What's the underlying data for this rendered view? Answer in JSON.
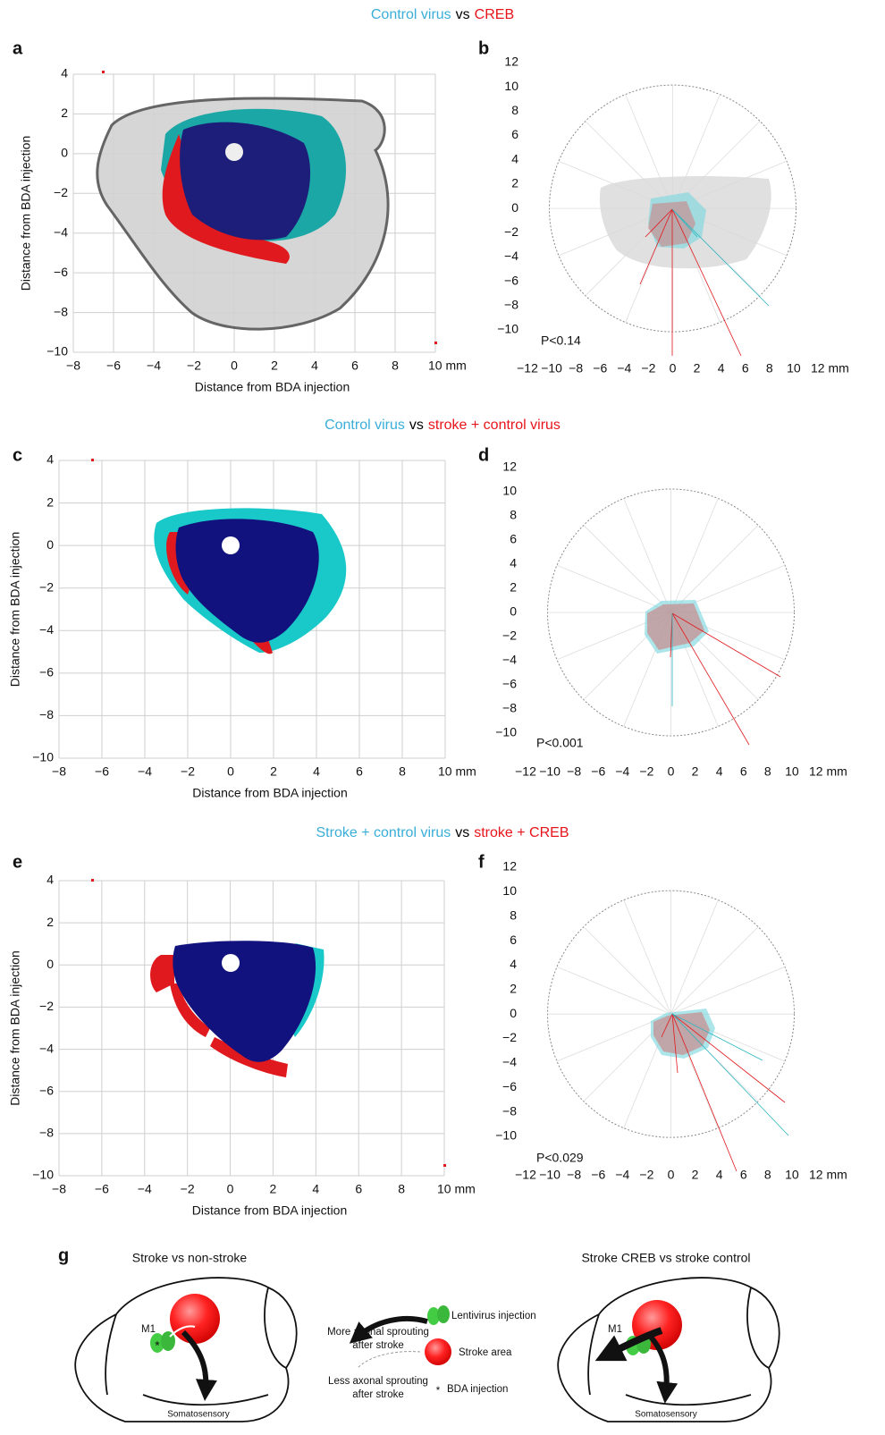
{
  "chart_data": [
    {
      "type": "scatter",
      "label": "a",
      "title_parts": [
        {
          "text": "Control virus",
          "color": "#3aaed8"
        },
        {
          "text": "vs",
          "color": "#000000"
        },
        {
          "text": "CREB",
          "color": "#e8141b"
        }
      ],
      "xlabel": "Distance from BDA injection",
      "ylabel": "Distance from BDA injection",
      "xlim": [
        -8,
        10
      ],
      "ylim": [
        -10,
        4
      ],
      "xticks": [
        {
          "value": -8,
          "label": "−8"
        },
        {
          "value": -6,
          "label": "−6"
        },
        {
          "value": -4,
          "label": "−4"
        },
        {
          "value": -2,
          "label": "−2"
        },
        0,
        2,
        4,
        6,
        8,
        {
          "value": 10,
          "label": "10 mm"
        }
      ],
      "yticks": [
        4,
        2,
        0,
        {
          "value": -2,
          "label": "−2"
        },
        {
          "value": -4,
          "label": "−4"
        },
        {
          "value": -6,
          "label": "−6"
        },
        {
          "value": -8,
          "label": "−8"
        },
        {
          "value": -10,
          "label": "−10"
        }
      ],
      "grid": true
    },
    {
      "type": "polar",
      "label": "b",
      "annotation": "P<0.14",
      "annotation_color": "#000000",
      "xlim": [
        -12,
        12
      ],
      "ylim": [
        -10,
        12
      ],
      "xticks": [
        {
          "value": -12,
          "label": "−12"
        },
        {
          "value": -10,
          "label": "−10"
        },
        {
          "value": -8,
          "label": "−8"
        },
        {
          "value": -6,
          "label": "−6"
        },
        {
          "value": -4,
          "label": "−4"
        },
        {
          "value": -2,
          "label": "−2"
        },
        0,
        2,
        4,
        6,
        8,
        10,
        {
          "value": 12,
          "label": "12 mm"
        }
      ],
      "yticks": [
        12,
        10,
        8,
        6,
        4,
        2,
        0,
        {
          "value": -2,
          "label": "−2"
        },
        {
          "value": -4,
          "label": "−4"
        },
        {
          "value": -6,
          "label": "−6"
        },
        {
          "value": -8,
          "label": "−8"
        },
        {
          "value": -10,
          "label": "−10"
        }
      ],
      "grid": false
    },
    {
      "type": "scatter",
      "label": "c",
      "title_parts": [
        {
          "text": "Control virus",
          "color": "#3aaed8"
        },
        {
          "text": "vs",
          "color": "#000000"
        },
        {
          "text": "stroke + control virus",
          "color": "#e8141b"
        }
      ],
      "xlabel": "Distance from BDA injection",
      "ylabel": "Distance from BDA injection",
      "xlim": [
        -8,
        10
      ],
      "ylim": [
        -10,
        4
      ],
      "xticks": [
        {
          "value": -8,
          "label": "−8"
        },
        {
          "value": -6,
          "label": "−6"
        },
        {
          "value": -4,
          "label": "−4"
        },
        {
          "value": -2,
          "label": "−2"
        },
        0,
        2,
        4,
        6,
        8,
        {
          "value": 10,
          "label": "10 mm"
        }
      ],
      "yticks": [
        4,
        2,
        0,
        {
          "value": -2,
          "label": "−2"
        },
        {
          "value": -4,
          "label": "−4"
        },
        {
          "value": -6,
          "label": "−6"
        },
        {
          "value": -8,
          "label": "−8"
        },
        {
          "value": -10,
          "label": "−10"
        }
      ],
      "grid": true
    },
    {
      "type": "polar",
      "label": "d",
      "annotation": "P<0.001",
      "annotation_color": "#e8141b",
      "xlim": [
        -12,
        12
      ],
      "ylim": [
        -10,
        12
      ],
      "xticks": [
        {
          "value": -12,
          "label": "−12"
        },
        {
          "value": -10,
          "label": "−10"
        },
        {
          "value": -8,
          "label": "−8"
        },
        {
          "value": -6,
          "label": "−6"
        },
        {
          "value": -4,
          "label": "−4"
        },
        {
          "value": -2,
          "label": "−2"
        },
        0,
        2,
        4,
        6,
        8,
        10,
        {
          "value": 12,
          "label": "12 mm"
        }
      ],
      "yticks": [
        12,
        10,
        8,
        6,
        4,
        2,
        0,
        {
          "value": -2,
          "label": "−2"
        },
        {
          "value": -4,
          "label": "−4"
        },
        {
          "value": -6,
          "label": "−6"
        },
        {
          "value": -8,
          "label": "−8"
        },
        {
          "value": -10,
          "label": "−10"
        }
      ],
      "grid": false
    },
    {
      "type": "scatter",
      "label": "e",
      "title_parts": [
        {
          "text": "Stroke + control virus",
          "color": "#3aaed8"
        },
        {
          "text": "vs",
          "color": "#000000"
        },
        {
          "text": "stroke + CREB",
          "color": "#e8141b"
        }
      ],
      "xlabel": "Distance from BDA injection",
      "ylabel": "Distance from BDA injection",
      "xlim": [
        -8,
        10
      ],
      "ylim": [
        -10,
        4
      ],
      "xticks": [
        {
          "value": -8,
          "label": "−8"
        },
        {
          "value": -6,
          "label": "−6"
        },
        {
          "value": -4,
          "label": "−4"
        },
        {
          "value": -2,
          "label": "−2"
        },
        0,
        2,
        4,
        6,
        8,
        {
          "value": 10,
          "label": "10 mm"
        }
      ],
      "yticks": [
        4,
        2,
        0,
        {
          "value": -2,
          "label": "−2"
        },
        {
          "value": -4,
          "label": "−4"
        },
        {
          "value": -6,
          "label": "−6"
        },
        {
          "value": -8,
          "label": "−8"
        },
        {
          "value": -10,
          "label": "−10"
        }
      ],
      "grid": true
    },
    {
      "type": "polar",
      "label": "f",
      "annotation": "P<0.029",
      "annotation_color": "#e8141b",
      "xlim": [
        -12,
        12
      ],
      "ylim": [
        -10,
        12
      ],
      "xticks": [
        {
          "value": -12,
          "label": "−12"
        },
        {
          "value": -10,
          "label": "−10"
        },
        {
          "value": -8,
          "label": "−8"
        },
        {
          "value": -6,
          "label": "−6"
        },
        {
          "value": -4,
          "label": "−4"
        },
        {
          "value": -2,
          "label": "−2"
        },
        0,
        2,
        4,
        6,
        8,
        10,
        {
          "value": 12,
          "label": "12 mm"
        }
      ],
      "yticks": [
        12,
        10,
        8,
        6,
        4,
        2,
        0,
        {
          "value": -2,
          "label": "−2"
        },
        {
          "value": -4,
          "label": "−4"
        },
        {
          "value": -6,
          "label": "−6"
        },
        {
          "value": -8,
          "label": "−8"
        },
        {
          "value": -10,
          "label": "−10"
        }
      ],
      "grid": false
    }
  ],
  "diagram": {
    "label": "g",
    "left_title": "Stroke vs non-stroke",
    "right_title": "Stroke CREB vs stroke control",
    "m1": "M1",
    "target": "Somatosensory",
    "star": "*",
    "more_sprouting": [
      "More axonal sprouting",
      "after stroke"
    ],
    "less_sprouting": [
      "Less axonal sprouting",
      "after stroke"
    ],
    "legend_items": [
      "Lentivirus injection",
      "Stroke area",
      "BDA injection"
    ]
  }
}
